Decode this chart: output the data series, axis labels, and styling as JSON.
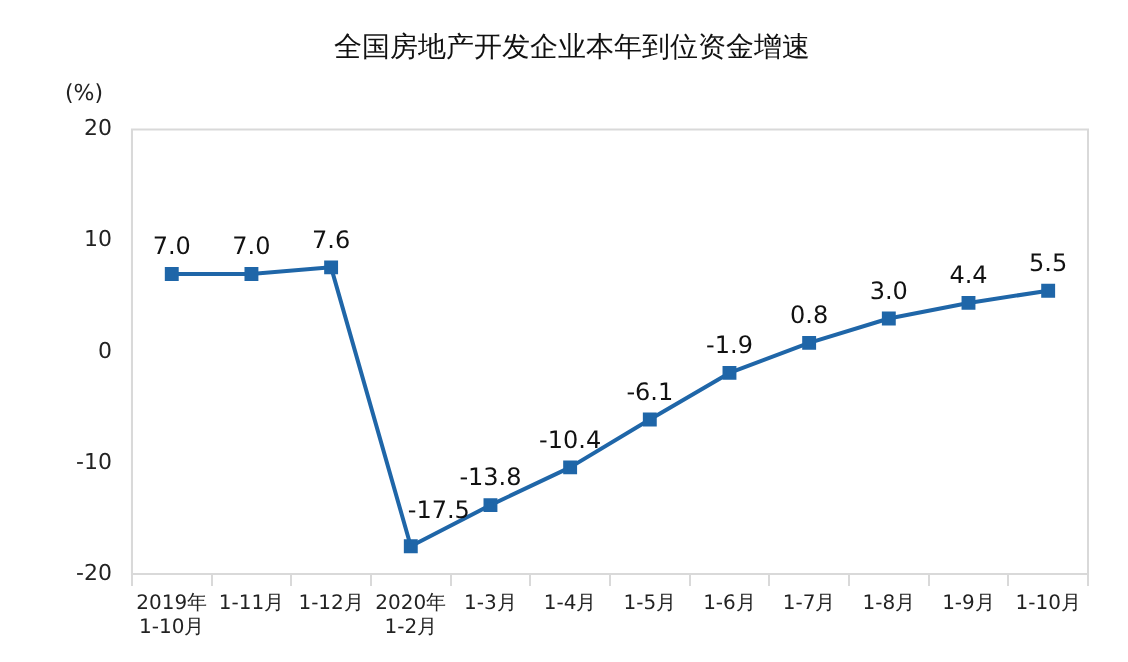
{
  "chart_data": {
    "type": "line",
    "title": "全国房地产开发企业本年到位资金增速",
    "ylabel": "(%)",
    "categories": [
      "2019年\n1-10月",
      "1-11月",
      "1-12月",
      "2020年\n1-2月",
      "1-3月",
      "1-4月",
      "1-5月",
      "1-6月",
      "1-7月",
      "1-8月",
      "1-9月",
      "1-10月"
    ],
    "series": [
      {
        "color": "#1f66a8",
        "values": [
          7.0,
          7.0,
          7.6,
          -17.5,
          -13.8,
          -10.4,
          -6.1,
          -1.9,
          0.8,
          3.0,
          4.4,
          5.5
        ],
        "value_labels": [
          "7.0",
          "7.0",
          "7.6",
          "-17.5",
          "-13.8",
          "-10.4",
          "-6.1",
          "-1.9",
          "0.8",
          "3.0",
          "4.4",
          "5.5"
        ]
      }
    ],
    "ylim": [
      -20,
      20
    ],
    "yticks": [
      -20,
      -10,
      0,
      10,
      20
    ],
    "grid": false,
    "legend": false,
    "marker": "square",
    "line_style": "solid"
  }
}
